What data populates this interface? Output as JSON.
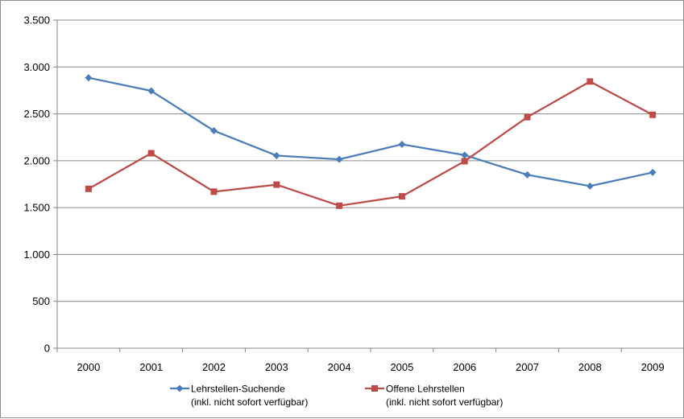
{
  "chart_data": {
    "type": "line",
    "categories": [
      "2000",
      "2001",
      "2002",
      "2003",
      "2004",
      "2005",
      "2006",
      "2007",
      "2008",
      "2009"
    ],
    "ylim": [
      0,
      3500
    ],
    "yticks": [
      0,
      500,
      1000,
      1500,
      2000,
      2500,
      3000,
      3500
    ],
    "ytick_labels": [
      "0",
      "500",
      "1.000",
      "1.500",
      "2.000",
      "2.500",
      "3.000",
      "3.500"
    ],
    "grid": true,
    "legend_position": "bottom",
    "series": [
      {
        "name": "Lehrstellen-Suchende",
        "name_line2": "(inkl. nicht sofort verfügbar)",
        "color": "#4a7ebb",
        "marker": "diamond",
        "values": [
          2885,
          2745,
          2320,
          2055,
          2015,
          2175,
          2060,
          1850,
          1730,
          1875
        ]
      },
      {
        "name": "Offene Lehrstellen",
        "name_line2": "(inkl. nicht sofort verfügbar)",
        "color": "#be4b48",
        "marker": "square",
        "values": [
          1700,
          2080,
          1670,
          1745,
          1520,
          1620,
          1995,
          2465,
          2845,
          2490
        ]
      }
    ]
  }
}
